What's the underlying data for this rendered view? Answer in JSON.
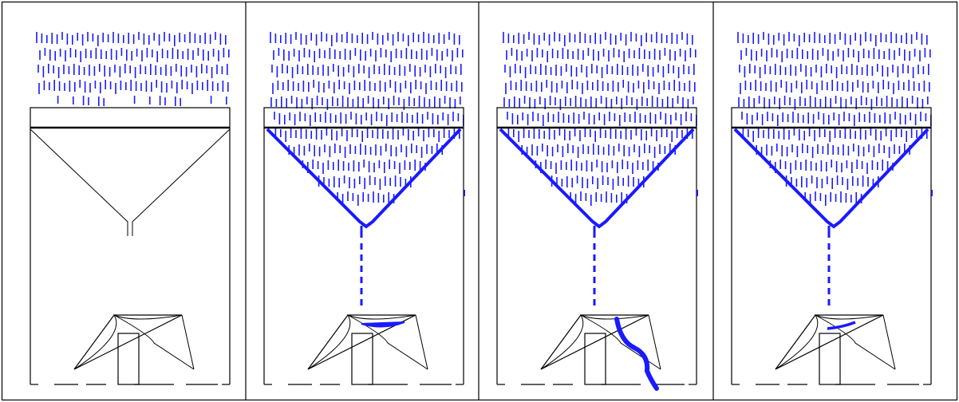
{
  "colors": {
    "background": "#ffffff",
    "outline": "#000000",
    "water": "#1a1aff"
  },
  "panels": [
    {
      "stage": "rain-falling",
      "funnel_wet": false,
      "stream": false,
      "bucket_water": "none"
    },
    {
      "stage": "bucket-filling",
      "funnel_wet": true,
      "stream": true,
      "bucket_water": "filling"
    },
    {
      "stage": "bucket-tipping",
      "funnel_wet": true,
      "stream": true,
      "bucket_water": "spilling"
    },
    {
      "stage": "bucket-reset",
      "funnel_wet": true,
      "stream": true,
      "bucket_water": "small"
    }
  ]
}
